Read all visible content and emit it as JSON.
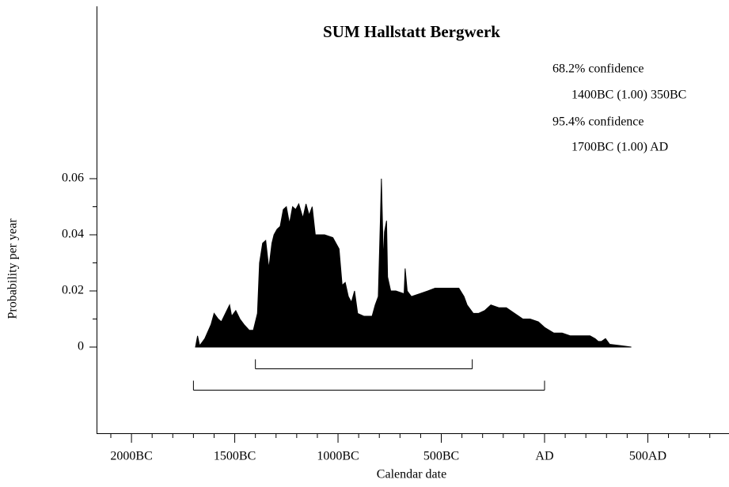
{
  "chart_data": {
    "type": "area",
    "title": "SUM Hallstatt Bergwerk",
    "xlabel": "Calendar date",
    "ylabel": "Probability per year",
    "annotations": [
      "68.2% confidence",
      "1400BC (1.00) 350BC",
      "95.4% confidence",
      "1700BC (1.00) AD"
    ],
    "ranges": [
      {
        "from": -1400,
        "to": -350
      },
      {
        "from": -1700,
        "to": 0
      }
    ],
    "color": "#000000",
    "xlim": [
      -2169,
      893
    ],
    "ylim": [
      -0.0307,
      0.1214
    ],
    "xticks": [
      {
        "value": -2000,
        "label": "2000BC"
      },
      {
        "value": -1500,
        "label": "1500BC"
      },
      {
        "value": -1000,
        "label": "1000BC"
      },
      {
        "value": -500,
        "label": "500BC"
      },
      {
        "value": 0,
        "label": "AD"
      },
      {
        "value": 500,
        "label": "500AD"
      }
    ],
    "xminorticks": [
      -2100,
      -1900,
      -1800,
      -1700,
      -1600,
      -1400,
      -1300,
      -1200,
      -1100,
      -900,
      -800,
      -700,
      -600,
      -400,
      -300,
      -200,
      -100,
      100,
      200,
      300,
      400,
      600,
      700,
      800
    ],
    "yticks": [
      0,
      0.02,
      0.04,
      0.06
    ],
    "yminorticks": [
      0.01,
      0.03,
      0.05
    ],
    "x": [
      -1690,
      -1680,
      -1670,
      -1655,
      -1645,
      -1615,
      -1600,
      -1580,
      -1565,
      -1545,
      -1525,
      -1515,
      -1495,
      -1475,
      -1455,
      -1430,
      -1410,
      -1390,
      -1380,
      -1365,
      -1350,
      -1335,
      -1320,
      -1310,
      -1295,
      -1280,
      -1265,
      -1250,
      -1235,
      -1220,
      -1205,
      -1190,
      -1170,
      -1155,
      -1140,
      -1125,
      -1110,
      -1095,
      -1065,
      -1025,
      -995,
      -980,
      -965,
      -950,
      -935,
      -920,
      -905,
      -875,
      -835,
      -820,
      -805,
      -795,
      -790,
      -780,
      -775,
      -765,
      -760,
      -745,
      -720,
      -680,
      -675,
      -665,
      -645,
      -605,
      -565,
      -530,
      -470,
      -415,
      -390,
      -375,
      -345,
      -320,
      -290,
      -260,
      -220,
      -185,
      -145,
      -105,
      -70,
      -30,
      0,
      45,
      85,
      125,
      160,
      220,
      245,
      260,
      275,
      295,
      315,
      370,
      420
    ],
    "values": [
      0,
      0.004,
      0.0005,
      0.002,
      0.003,
      0.008,
      0.012,
      0.01,
      0.009,
      0.012,
      0.015,
      0.011,
      0.013,
      0.01,
      0.008,
      0.006,
      0.006,
      0.012,
      0.03,
      0.037,
      0.038,
      0.028,
      0.037,
      0.04,
      0.042,
      0.043,
      0.049,
      0.05,
      0.044,
      0.05,
      0.049,
      0.051,
      0.046,
      0.051,
      0.047,
      0.05,
      0.04,
      0.04,
      0.04,
      0.039,
      0.035,
      0.022,
      0.023,
      0.018,
      0.016,
      0.02,
      0.012,
      0.011,
      0.011,
      0.015,
      0.018,
      0.045,
      0.06,
      0.03,
      0.041,
      0.045,
      0.025,
      0.02,
      0.02,
      0.019,
      0.028,
      0.02,
      0.018,
      0.019,
      0.02,
      0.021,
      0.021,
      0.021,
      0.018,
      0.015,
      0.012,
      0.012,
      0.013,
      0.015,
      0.014,
      0.014,
      0.012,
      0.01,
      0.01,
      0.009,
      0.007,
      0.005,
      0.005,
      0.004,
      0.004,
      0.004,
      0.003,
      0.002,
      0.002,
      0.003,
      0.001,
      0.0005,
      0
    ]
  }
}
